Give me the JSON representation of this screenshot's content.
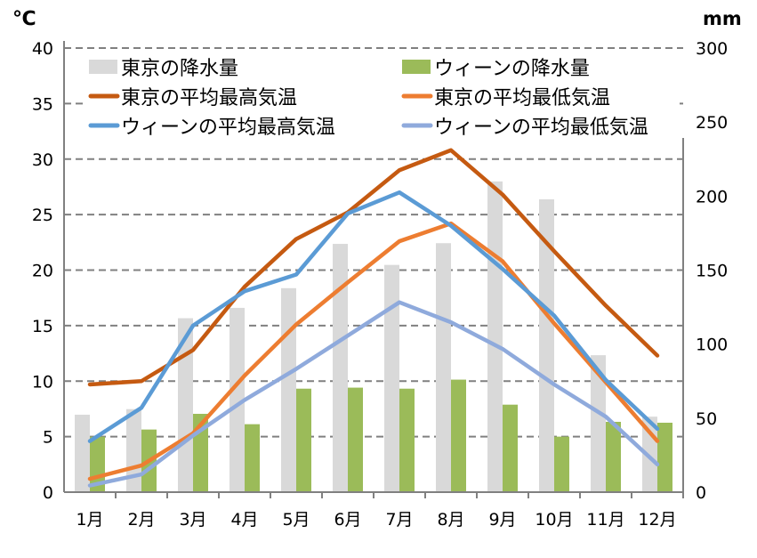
{
  "chart_data": {
    "type": "bar+line",
    "categories": [
      "1月",
      "2月",
      "3月",
      "4月",
      "5月",
      "6月",
      "7月",
      "8月",
      "9月",
      "10月",
      "11月",
      "12月"
    ],
    "y_left": {
      "unit_label": "℃",
      "range": [
        0,
        40
      ],
      "ticks": [
        0,
        5,
        10,
        15,
        20,
        25,
        30,
        35,
        40
      ]
    },
    "y_right": {
      "unit_label": "mm",
      "range": [
        0,
        300
      ],
      "ticks": [
        0,
        50,
        100,
        150,
        200,
        250,
        300
      ]
    },
    "grid": true,
    "legend": {
      "placement": "top",
      "columns": 2
    },
    "series": [
      {
        "name": "東京の降水量",
        "type": "bar",
        "axis": "right",
        "color": "#d9d9d9",
        "values": [
          52.3,
          56.1,
          117.5,
          124.5,
          137.8,
          167.7,
          153.5,
          168.2,
          209.9,
          197.8,
          92.5,
          51.0
        ]
      },
      {
        "name": "ウィーンの降水量",
        "type": "bar",
        "axis": "right",
        "color": "#9bbb59",
        "values": [
          37.5,
          42.3,
          52.9,
          45.9,
          69.9,
          70.6,
          69.9,
          76.0,
          59.1,
          37.5,
          47.5,
          46.9
        ]
      },
      {
        "name": "東京の平均最高気温",
        "type": "line",
        "axis": "left",
        "color": "#c55a11",
        "values": [
          9.7,
          10.0,
          12.8,
          18.5,
          22.8,
          25.2,
          29.0,
          30.8,
          26.8,
          21.7,
          16.8,
          12.3
        ]
      },
      {
        "name": "東京の平均最低気温",
        "type": "line",
        "axis": "left",
        "color": "#ed7d31",
        "values": [
          1.2,
          2.4,
          5.3,
          10.5,
          15.1,
          18.9,
          22.6,
          24.2,
          20.8,
          15.2,
          9.9,
          4.6
        ]
      },
      {
        "name": "ウィーンの平均最高気温",
        "type": "line",
        "axis": "left",
        "color": "#5b9bd5",
        "values": [
          4.6,
          7.6,
          15.0,
          18.1,
          19.6,
          25.1,
          27.0,
          24.0,
          20.1,
          15.9,
          10.1,
          5.7
        ]
      },
      {
        "name": "ウィーンの平均最低気温",
        "type": "line",
        "axis": "left",
        "color": "#8faadc",
        "values": [
          0.6,
          1.6,
          5.1,
          8.3,
          11.1,
          14.1,
          17.1,
          15.3,
          12.9,
          9.7,
          6.8,
          2.5
        ]
      }
    ]
  }
}
